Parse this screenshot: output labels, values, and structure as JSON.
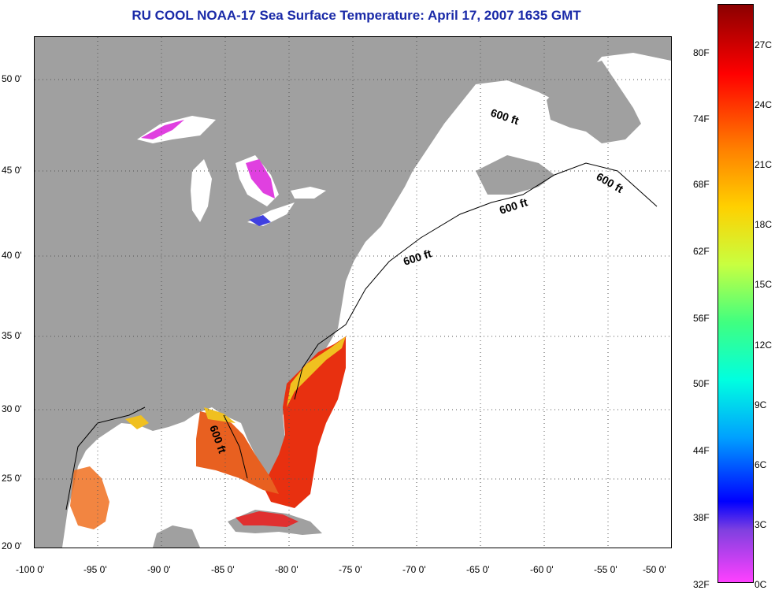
{
  "title": "RU COOL  NOAA-17  Sea Surface Temperature:  April 17, 2007 1635 GMT",
  "map": {
    "lat_ticks": [
      "50 0'",
      "45 0'",
      "40 0'",
      "35 0'",
      "30 0'",
      "25 0'",
      "20 0'"
    ],
    "lon_ticks": [
      "-100 0'",
      "-95 0'",
      "-90 0'",
      "-85 0'",
      "-80 0'",
      "-75 0'",
      "-70 0'",
      "-65 0'",
      "-60 0'",
      "-55 0'",
      "-50 0'"
    ],
    "contour_labels": [
      "600 ft",
      "600 ft",
      "600 ft",
      "600 ft",
      "600 ft"
    ],
    "colors": {
      "land": "#a0a0a0",
      "ocean": "#ffffff",
      "warm": "#e83010",
      "orange": "#f07020",
      "yellow": "#f0c020",
      "magenta": "#e040e0",
      "blue": "#4040e0",
      "grid": "#555555"
    }
  },
  "colorbar": {
    "fahrenheit_labels": [
      "80F",
      "74F",
      "68F",
      "62F",
      "56F",
      "50F",
      "44F",
      "38F",
      "32F"
    ],
    "celsius_labels": [
      "27C",
      "24C",
      "21C",
      "18C",
      "15C",
      "12C",
      "9C",
      "6C",
      "3C",
      "0C"
    ]
  }
}
